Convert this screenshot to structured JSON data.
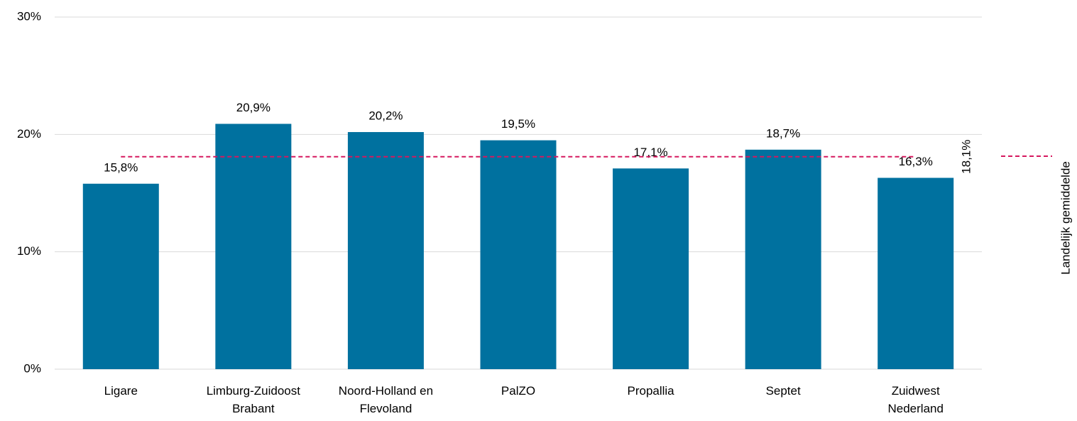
{
  "chart_data": {
    "type": "bar",
    "categories": [
      "Ligare",
      "Limburg-Zuidoost Brabant",
      "Noord-Holland en Flevoland",
      "PalZO",
      "Propallia",
      "Septet",
      "Zuidwest Nederland"
    ],
    "values": [
      15.8,
      20.9,
      20.2,
      19.5,
      17.1,
      18.7,
      16.3
    ],
    "value_labels": [
      "15,8%",
      "20,9%",
      "20,2%",
      "19,5%",
      "17,1%",
      "18,7%",
      "16,3%"
    ],
    "color": "#00719f",
    "ylim": [
      0,
      30
    ],
    "yticks": [
      {
        "value": 0,
        "label": "0%"
      },
      {
        "value": 10,
        "label": "10%"
      },
      {
        "value": 20,
        "label": "20%"
      },
      {
        "value": 30,
        "label": "30%"
      }
    ],
    "grid": true,
    "reference_line": {
      "name": "Landelijk gemiddelde",
      "value": 18.1,
      "label": "18,1%",
      "color": "#d6185f"
    }
  }
}
